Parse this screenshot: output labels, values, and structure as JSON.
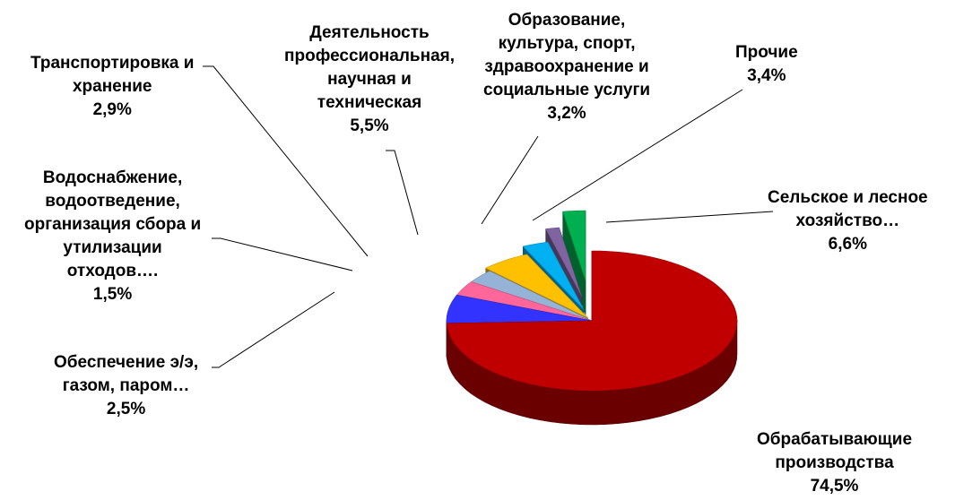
{
  "chart_data": {
    "type": "pie",
    "style": "3d-exploded",
    "title": "",
    "slices": [
      {
        "label": "Обрабатывающие производства",
        "value": 74.5,
        "value_label": "74,5%",
        "lines": [
          "Обрабатывающие",
          "производства",
          "74,5%"
        ],
        "color": "#C00000"
      },
      {
        "label": "Сельское и лесное хозяйство…",
        "value": 6.6,
        "value_label": "6,6%",
        "lines": [
          "Сельское и лесное",
          "хозяйство…",
          "6,6%"
        ],
        "color": "#3333FF"
      },
      {
        "label": "Прочие",
        "value": 3.4,
        "value_label": "3,4%",
        "lines": [
          "Прочие",
          "3,4%"
        ],
        "color": "#FF6699"
      },
      {
        "label": "Образование, культура, спорт, здравоохранение и социальные услуги",
        "value": 3.2,
        "value_label": "3,2%",
        "lines": [
          "Образование,",
          "культура, спорт,",
          "здравоохранение и",
          "социальные услуги",
          "3,2%"
        ],
        "color": "#95B3D7"
      },
      {
        "label": "Деятельность профессиональная, научная и техническая",
        "value": 5.5,
        "value_label": "5,5%",
        "lines": [
          "Деятельность",
          "профессиональная,",
          "научная и",
          "техническая",
          "5,5%"
        ],
        "color": "#FFC000"
      },
      {
        "label": "Транспортировка и хранение",
        "value": 2.9,
        "value_label": "2,9%",
        "lines": [
          "Транспортировка и",
          "хранение",
          "2,9%"
        ],
        "color": "#00B0F0"
      },
      {
        "label": "Водоснабжение, водоотведение, организация сбора и утилизации отходов….",
        "value": 1.5,
        "value_label": "1,5%",
        "lines": [
          "Водоснабжение,",
          "водоотведение,",
          "организация сбора и",
          "утилизации",
          "отходов….",
          "1,5%"
        ],
        "color": "#8064A2"
      },
      {
        "label": "Обеспечение э/э, газом, паром…",
        "value": 2.5,
        "value_label": "2,5%",
        "lines": [
          "Обеспечение э/э,",
          "газом, паром…",
          "2,5%"
        ],
        "color": "#00B050"
      }
    ]
  }
}
